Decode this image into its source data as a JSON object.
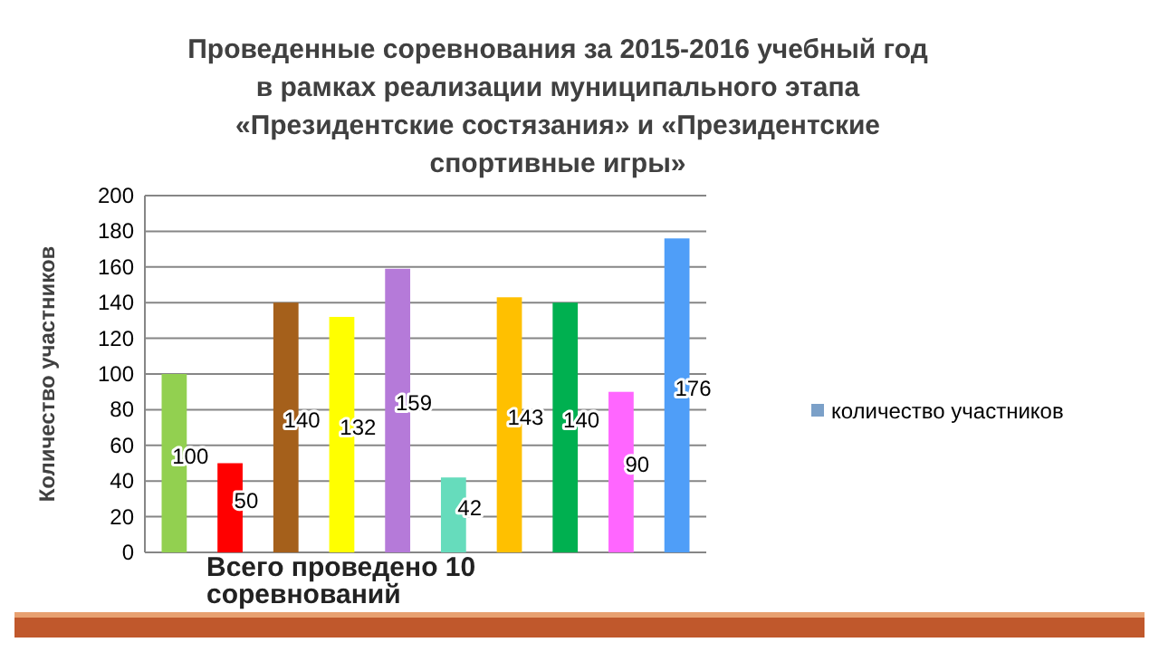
{
  "chart_data": {
    "type": "bar",
    "title": "Проведенные соревнования за 2015-2016 учебный год в рамках реализации муниципального этапа «Президентские состязания» и «Президентские спортивные игры»",
    "ylabel": "Количество участников",
    "categories": [
      null,
      null,
      null,
      null,
      null,
      null,
      null,
      null,
      null,
      null
    ],
    "series": [
      {
        "name": "количество участников",
        "color": "#7ba0c8",
        "values": [
          100,
          50,
          140,
          132,
          159,
          42,
          143,
          140,
          90,
          176
        ],
        "colors": [
          "#92d050",
          "#ff0000",
          "#a5601b",
          "#ffff00",
          "#b57ad9",
          "#66dcbc",
          "#ffc000",
          "#00b050",
          "#ff66ff",
          "#4f9ef8"
        ]
      }
    ],
    "ylim": [
      0,
      200
    ],
    "yticks": [
      0,
      20,
      40,
      60,
      80,
      100,
      120,
      140,
      160,
      180,
      200
    ],
    "grid": "y",
    "legend": "right",
    "data_labels": true,
    "annotations": [
      "Всего проведено 10 соревнований"
    ]
  }
}
